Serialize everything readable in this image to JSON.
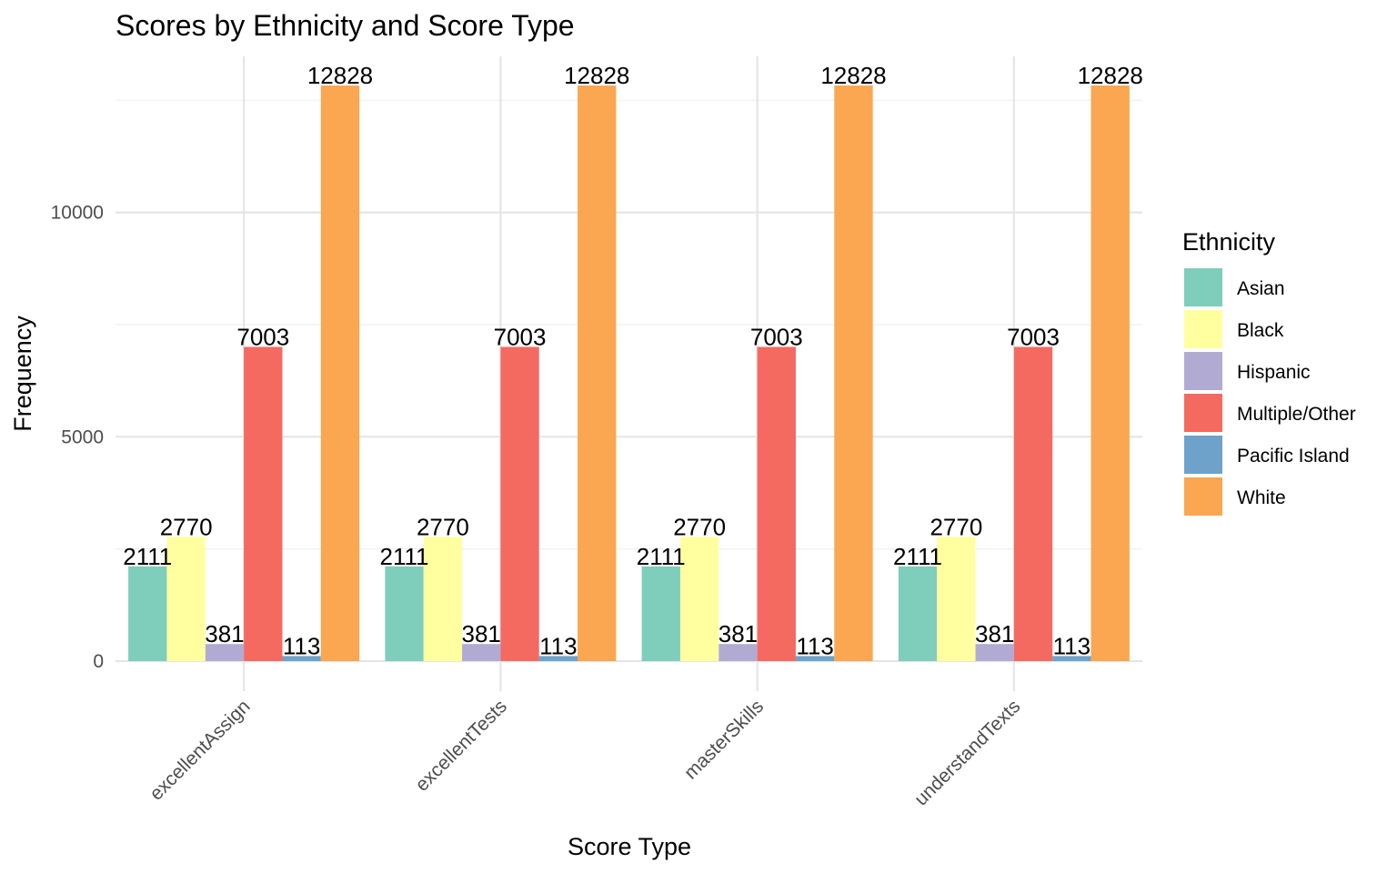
{
  "chart_data": {
    "type": "bar",
    "title": "Scores by Ethnicity and Score Type",
    "xlabel": "Score Type",
    "ylabel": "Frequency",
    "categories": [
      "excellentAssign",
      "excellentTests",
      "masterSkills",
      "understandTexts"
    ],
    "series": [
      {
        "name": "Asian",
        "color": "#7fcdbb",
        "values": [
          2111,
          2111,
          2111,
          2111
        ]
      },
      {
        "name": "Black",
        "color": "#ffffa0",
        "values": [
          2770,
          2770,
          2770,
          2770
        ]
      },
      {
        "name": "Hispanic",
        "color": "#b1abd3",
        "values": [
          381,
          381,
          381,
          381
        ]
      },
      {
        "name": "Multiple/Other",
        "color": "#f46a61",
        "values": [
          7003,
          7003,
          7003,
          7003
        ]
      },
      {
        "name": "Pacific Island",
        "color": "#6ea2ca",
        "values": [
          113,
          113,
          113,
          113
        ]
      },
      {
        "name": "White",
        "color": "#fba651",
        "values": [
          12828,
          12828,
          12828,
          12828
        ]
      }
    ],
    "yticks": [
      0,
      5000,
      10000
    ],
    "ylim": [
      0,
      13500
    ],
    "legend_title": "Ethnicity",
    "legend_position": "right",
    "grid": true
  }
}
